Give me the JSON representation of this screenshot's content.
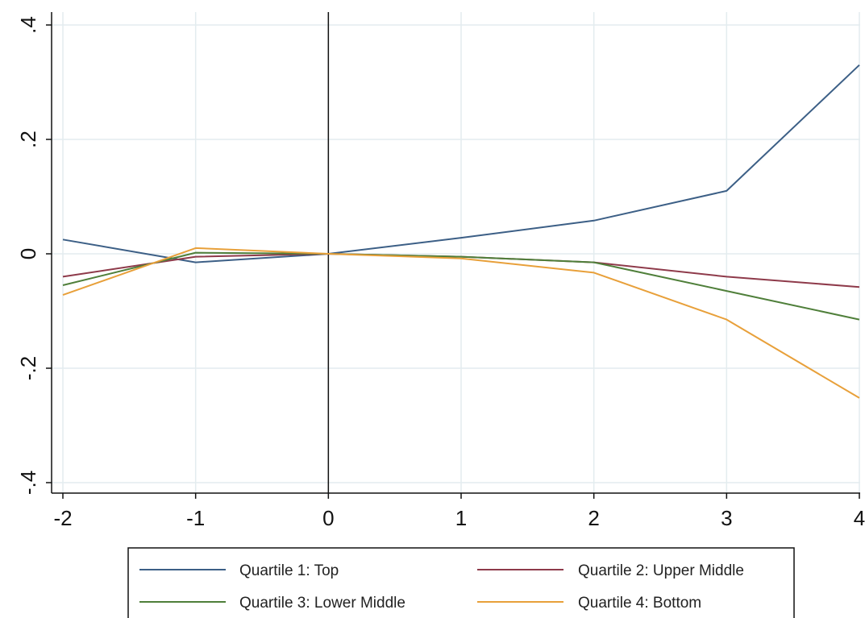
{
  "chart_data": {
    "type": "line",
    "title": "",
    "xlabel": "",
    "ylabel": "",
    "x": [
      -2,
      -1,
      0,
      1,
      2,
      3,
      4
    ],
    "xlim": [
      -2,
      4
    ],
    "ylim": [
      -0.4,
      0.4
    ],
    "xticks": [
      -2,
      -1,
      0,
      1,
      2,
      3,
      4
    ],
    "xtick_labels": [
      "-2",
      "-1",
      "0",
      "1",
      "2",
      "3",
      "4"
    ],
    "yticks": [
      -0.4,
      -0.2,
      0,
      0.2,
      0.4
    ],
    "ytick_labels": [
      "-.4",
      "-.2",
      "0",
      ".2",
      ".4"
    ],
    "reference_line_x": 0,
    "grid": true,
    "legend_position": "bottom",
    "series": [
      {
        "name": "Quartile 1: Top",
        "color": "#3c5f86",
        "values": [
          0.025,
          -0.015,
          0,
          0.028,
          0.058,
          0.11,
          0.33
        ]
      },
      {
        "name": "Quartile 2: Upper Middle",
        "color": "#8e3a4a",
        "values": [
          -0.04,
          -0.005,
          0,
          -0.005,
          -0.015,
          -0.04,
          -0.058
        ]
      },
      {
        "name": "Quartile 3: Lower Middle",
        "color": "#4f7f3a",
        "values": [
          -0.055,
          0.002,
          0,
          -0.005,
          -0.015,
          -0.065,
          -0.115
        ]
      },
      {
        "name": "Quartile 4: Bottom",
        "color": "#e8a03a",
        "values": [
          -0.072,
          0.01,
          0,
          -0.008,
          -0.033,
          -0.115,
          -0.252
        ]
      }
    ]
  }
}
